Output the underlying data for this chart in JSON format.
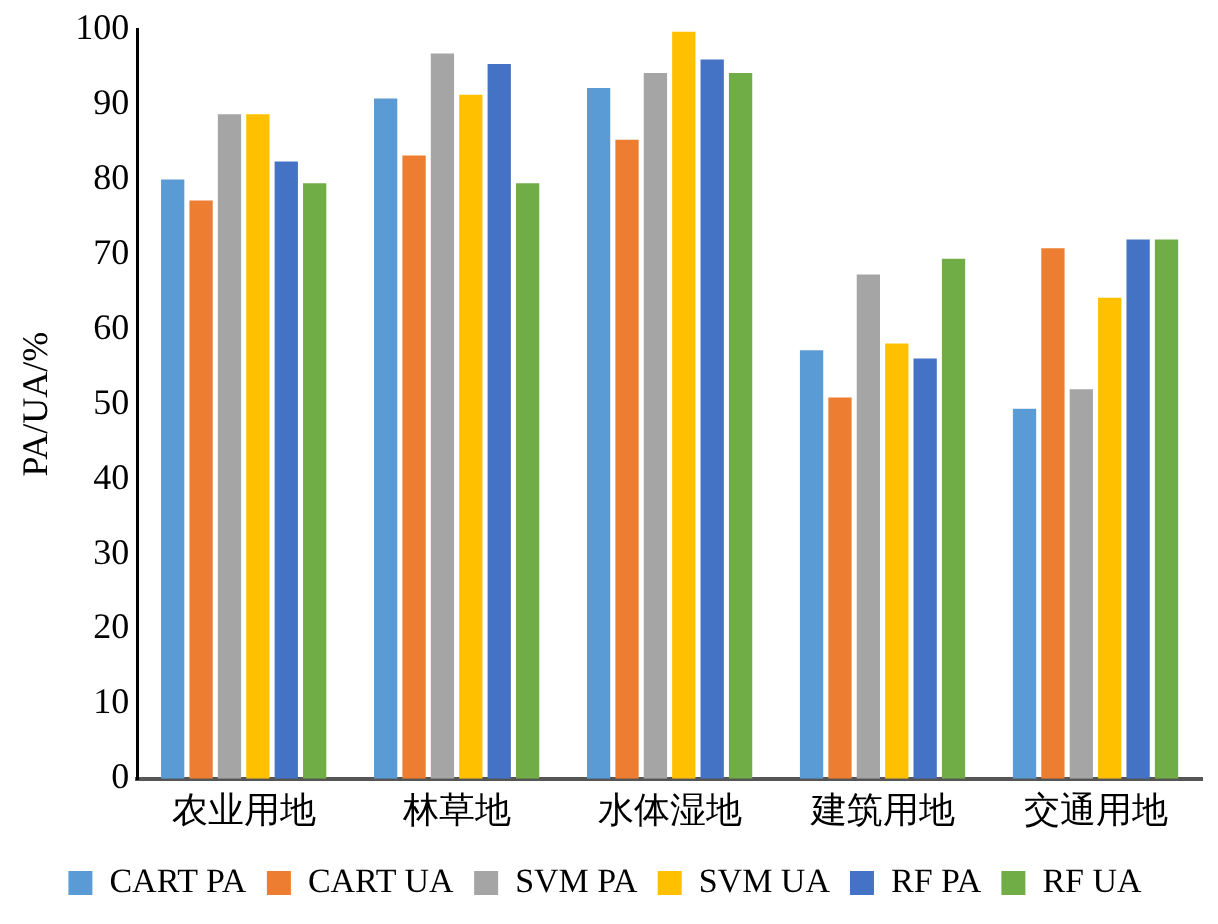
{
  "chart_data": {
    "type": "bar",
    "ylabel": "PA/UA/%",
    "categories": [
      "农业用地",
      "林草地",
      "水体湿地",
      "建筑用地",
      "交通用地"
    ],
    "series": [
      {
        "name": "CART PA",
        "color": "#5b9bd5",
        "values": [
          80,
          90.8,
          92.2,
          57.2,
          49.4
        ]
      },
      {
        "name": "CART UA",
        "color": "#ed7d31",
        "values": [
          77.2,
          83.2,
          85.3,
          50.9,
          70.8
        ]
      },
      {
        "name": "SVM PA",
        "color": "#a5a5a5",
        "values": [
          88.7,
          96.8,
          94.2,
          67.3,
          52
        ]
      },
      {
        "name": "SVM UA",
        "color": "#ffc000",
        "values": [
          88.7,
          91.3,
          99.7,
          58.1,
          64.2
        ]
      },
      {
        "name": "RF PA",
        "color": "#4472c4",
        "values": [
          82.4,
          95.4,
          96,
          56.1,
          72
        ]
      },
      {
        "name": "RF UA",
        "color": "#70ad47",
        "values": [
          79.5,
          79.5,
          94.2,
          69.4,
          72
        ]
      }
    ],
    "ylim": [
      0,
      100
    ],
    "yticks": [
      0,
      10,
      20,
      30,
      40,
      50,
      60,
      70,
      80,
      90,
      100
    ],
    "grid": false,
    "legend": "bottom"
  }
}
